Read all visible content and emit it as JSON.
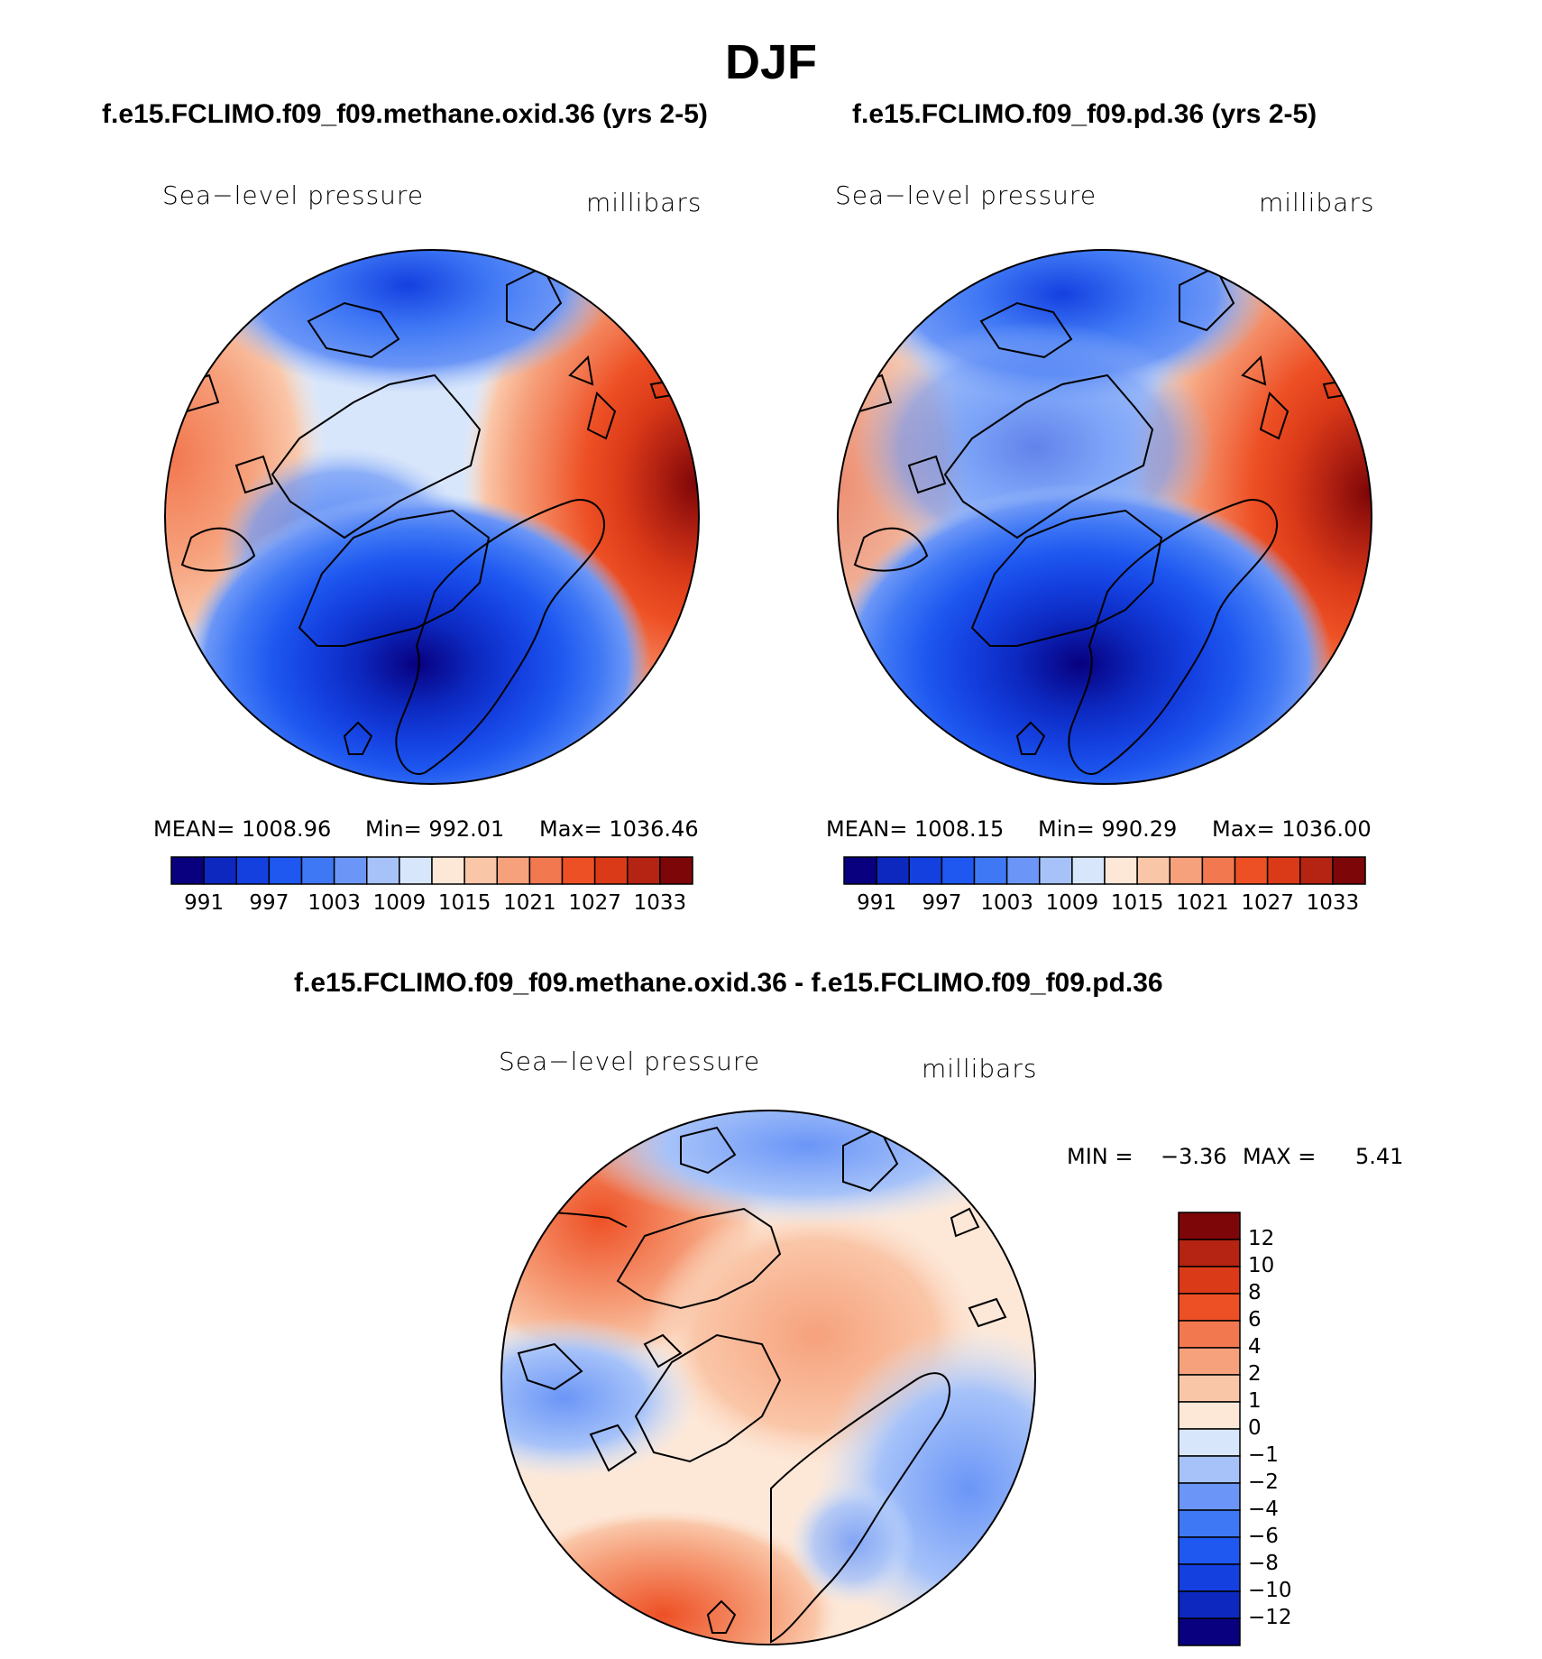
{
  "figure_title": "DJF",
  "palette": [
    "#08007f",
    "#0c28bf",
    "#1440e0",
    "#1e58f0",
    "#3f78f5",
    "#6b96f7",
    "#a6c2f9",
    "#d8e6fb",
    "#fde8d8",
    "#fac6a8",
    "#f6a17c",
    "#f27850",
    "#ee5025",
    "#db3a18",
    "#b52312",
    "#7d0608"
  ],
  "land_outline_color": "#000000",
  "panel_left": {
    "title": "f.e15.FCLIMO.f09_f09.methane.oxid.36 (yrs 2-5)",
    "variable": "Sea−level pressure",
    "units": "millibars",
    "stats": {
      "mean": "MEAN=  1008.96",
      "min": "Min=  992.01",
      "max": "Max=  1036.46"
    },
    "colorbar_ticks": [
      "991",
      "997",
      "1003",
      "1009",
      "1015",
      "1021",
      "1027",
      "1033"
    ]
  },
  "panel_right": {
    "title": "f.e15.FCLIMO.f09_f09.pd.36 (yrs 2-5)",
    "variable": "Sea−level pressure",
    "units": "millibars",
    "stats": {
      "mean": "MEAN=  1008.15",
      "min": "Min=  990.29",
      "max": "Max=  1036.00"
    },
    "colorbar_ticks": [
      "991",
      "997",
      "1003",
      "1009",
      "1015",
      "1021",
      "1027",
      "1033"
    ]
  },
  "panel_diff": {
    "title": "f.e15.FCLIMO.f09_f09.methane.oxid.36 - f.e15.FCLIMO.f09_f09.pd.36",
    "variable": "Sea−level pressure",
    "units": "millibars",
    "stats": {
      "min_label": "MIN =",
      "min": "−3.36",
      "max_label": "MAX =",
      "max": "5.41"
    },
    "colorbar_ticks": [
      "12",
      "10",
      "8",
      "6",
      "4",
      "2",
      "1",
      "0",
      "−1",
      "−2",
      "−4",
      "−6",
      "−8",
      "−10",
      "−12"
    ]
  }
}
